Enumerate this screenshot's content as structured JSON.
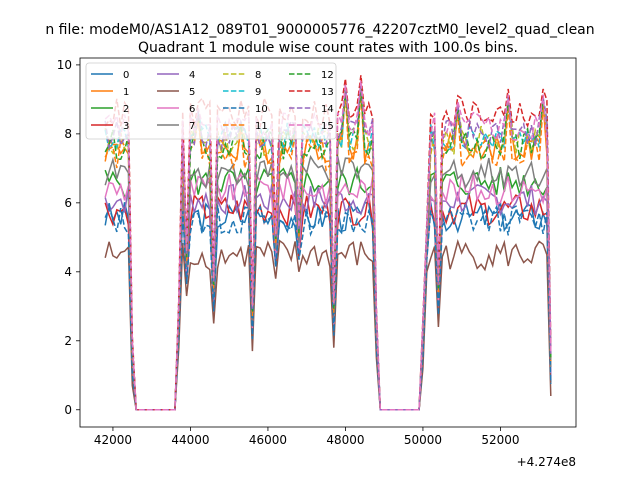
{
  "figure": {
    "suptitle": "n file: modeM0/AS1A12_089T01_9000005776_42207cztM0_level2_quad_clean",
    "title": "Quadrant 1 module wise count rates with 100.0s bins.",
    "x_offset_label": "+4.274e8"
  },
  "chart_data": {
    "type": "line",
    "title": "Quadrant 1 module wise count rates with 100.0s bins.",
    "xlabel": "",
    "ylabel": "",
    "x_offset": 427400000,
    "xlim": [
      41150,
      53950
    ],
    "ylim": [
      -0.5,
      10.2
    ],
    "xticks": [
      42000,
      44000,
      46000,
      48000,
      50000,
      52000
    ],
    "xtick_labels": [
      "42000",
      "44000",
      "46000",
      "48000",
      "50000",
      "52000"
    ],
    "yticks": [
      0,
      2,
      4,
      6,
      8,
      10
    ],
    "ytick_labels": [
      "0",
      "2",
      "4",
      "6",
      "8",
      "10"
    ],
    "grid": false,
    "legend_position": "upper-left",
    "legend_columns": 4,
    "x_start": 41800,
    "x_step": 100,
    "segments_on": [
      [
        41800,
        42500
      ],
      [
        43700,
        48800
      ],
      [
        50000,
        53300
      ]
    ],
    "dip_points": [
      [
        42500,
        0.7
      ],
      [
        43700,
        1.8
      ],
      [
        43900,
        3.3
      ],
      [
        44600,
        2.5
      ],
      [
        45600,
        1.7
      ],
      [
        46200,
        3.8
      ],
      [
        46800,
        4.0
      ],
      [
        47700,
        1.8
      ],
      [
        48800,
        1.5
      ],
      [
        50000,
        1.2
      ],
      [
        50100,
        4.0
      ],
      [
        50400,
        2.4
      ],
      [
        53300,
        0.4
      ]
    ],
    "spike_points": [
      [
        44200,
        8.9
      ],
      [
        45300,
        8.6
      ],
      [
        46700,
        8.5
      ],
      [
        48000,
        9.6
      ],
      [
        48400,
        9.7
      ],
      [
        50900,
        9.1
      ],
      [
        52200,
        9.3
      ],
      [
        53100,
        9.3
      ]
    ],
    "series": [
      {
        "name": "0",
        "color": "#1f77b4",
        "dashed": false,
        "level": 5.6
      },
      {
        "name": "1",
        "color": "#ff7f0e",
        "dashed": false,
        "level": 7.6
      },
      {
        "name": "2",
        "color": "#2ca02c",
        "dashed": false,
        "level": 6.6
      },
      {
        "name": "3",
        "color": "#d62728",
        "dashed": false,
        "level": 5.8
      },
      {
        "name": "4",
        "color": "#9467bd",
        "dashed": false,
        "level": 6.1
      },
      {
        "name": "5",
        "color": "#8c564b",
        "dashed": false,
        "level": 4.5
      },
      {
        "name": "6",
        "color": "#e377c2",
        "dashed": false,
        "level": 6.4
      },
      {
        "name": "7",
        "color": "#7f7f7f",
        "dashed": false,
        "level": 6.9
      },
      {
        "name": "8",
        "color": "#bcbd22",
        "dashed": true,
        "level": 7.8
      },
      {
        "name": "9",
        "color": "#17becf",
        "dashed": true,
        "level": 7.9
      },
      {
        "name": "10",
        "color": "#1f77b4",
        "dashed": true,
        "level": 5.5
      },
      {
        "name": "11",
        "color": "#ff7f0e",
        "dashed": true,
        "level": 7.4
      },
      {
        "name": "12",
        "color": "#2ca02c",
        "dashed": true,
        "level": 7.7
      },
      {
        "name": "13",
        "color": "#d62728",
        "dashed": true,
        "level": 8.6
      },
      {
        "name": "14",
        "color": "#9467bd",
        "dashed": true,
        "level": 8.0
      },
      {
        "name": "15",
        "color": "#e377c2",
        "dashed": true,
        "level": 8.2
      }
    ]
  }
}
